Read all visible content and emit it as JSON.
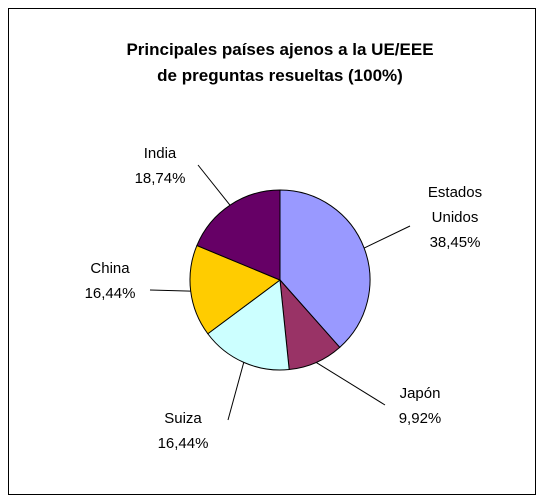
{
  "chart_data": {
    "type": "pie",
    "title": "Principales países ajenos a la UE/EEE de preguntas resueltas (100%)",
    "categories": [
      "Estados Unidos",
      "Japón",
      "Suiza",
      "China",
      "India"
    ],
    "values": [
      38.45,
      9.92,
      16.44,
      16.44,
      18.74
    ],
    "value_labels": [
      "38,45%",
      "9,92%",
      "16,44%",
      "16,44%",
      "18,74%"
    ],
    "colors": [
      "#9999ff",
      "#993366",
      "#ccffff",
      "#ffcc00",
      "#660066"
    ]
  }
}
